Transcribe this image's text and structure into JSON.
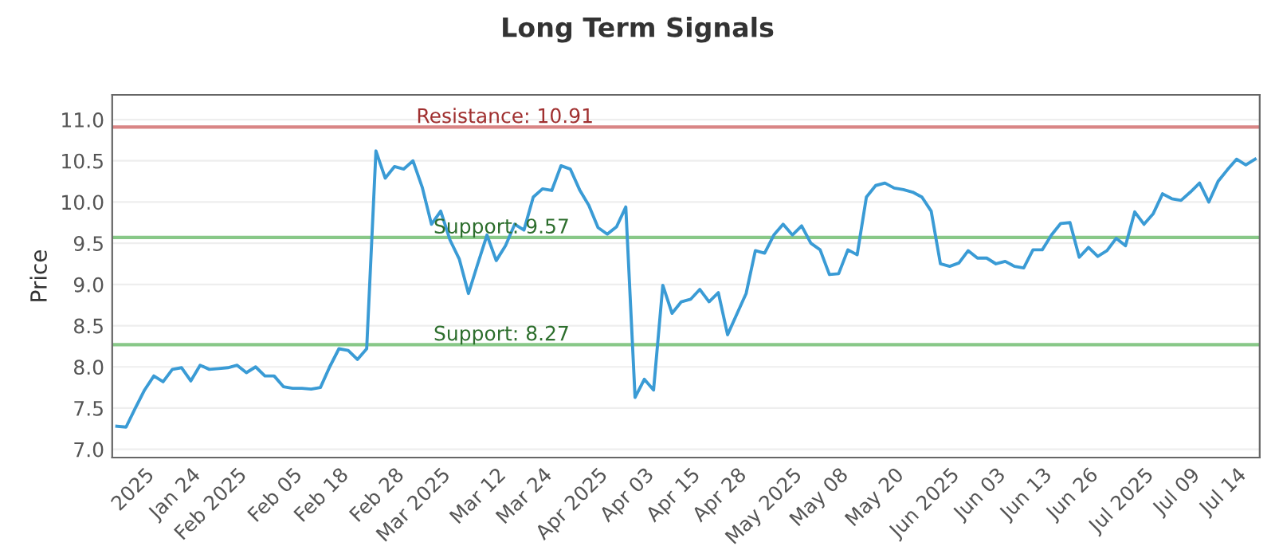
{
  "chart_data": {
    "type": "line",
    "title": "Long Term Signals",
    "ylabel": "Price",
    "categories": [
      null,
      null,
      null,
      "2025",
      null,
      null,
      null,
      null,
      "Jan 24",
      null,
      null,
      null,
      null,
      "Feb 2025",
      null,
      null,
      null,
      null,
      null,
      "Feb 05",
      null,
      null,
      null,
      null,
      "Feb 18",
      null,
      null,
      null,
      null,
      null,
      "Feb 28",
      null,
      null,
      null,
      null,
      "Mar 2025",
      null,
      null,
      null,
      null,
      null,
      "Mar 12",
      null,
      null,
      null,
      null,
      "Mar 24",
      null,
      null,
      null,
      null,
      null,
      "Apr 2025",
      null,
      null,
      null,
      null,
      "Apr 03",
      null,
      null,
      null,
      null,
      "Apr 15",
      null,
      null,
      null,
      null,
      "Apr 28",
      null,
      null,
      null,
      null,
      null,
      "May 2025",
      null,
      null,
      null,
      null,
      "May 08",
      null,
      null,
      null,
      null,
      null,
      "May 20",
      null,
      null,
      null,
      null,
      null,
      "Jun 2025",
      null,
      null,
      null,
      null,
      "Jun 03",
      null,
      null,
      null,
      null,
      "Jun 13",
      null,
      null,
      null,
      null,
      "Jun 26",
      null,
      null,
      null,
      null,
      null,
      "Jul 2025",
      null,
      null,
      null,
      null,
      "Jul 09",
      null,
      null,
      null,
      null,
      "Jul 14",
      null,
      null
    ],
    "series": [
      {
        "color": "#3a9bd5",
        "values": [
          7.28,
          7.27,
          7.5,
          7.72,
          7.89,
          7.82,
          7.97,
          7.99,
          7.83,
          8.02,
          7.97,
          7.98,
          7.99,
          8.02,
          7.93,
          8.0,
          7.89,
          7.89,
          7.76,
          7.74,
          7.74,
          7.73,
          7.75,
          8.0,
          8.22,
          8.2,
          8.09,
          8.22,
          10.62,
          10.29,
          10.43,
          10.4,
          10.5,
          10.18,
          9.73,
          9.89,
          9.54,
          9.31,
          8.89,
          9.25,
          9.6,
          9.29,
          9.47,
          9.73,
          9.66,
          10.06,
          10.16,
          10.14,
          10.44,
          10.4,
          10.15,
          9.96,
          9.69,
          9.61,
          9.7,
          9.94,
          7.63,
          7.85,
          7.72,
          8.99,
          8.65,
          8.79,
          8.82,
          8.94,
          8.79,
          8.9,
          8.39,
          8.64,
          8.89,
          9.41,
          9.38,
          9.6,
          9.73,
          9.6,
          9.71,
          9.5,
          9.42,
          9.12,
          9.13,
          9.42,
          9.36,
          10.06,
          10.2,
          10.23,
          10.17,
          10.15,
          10.12,
          10.06,
          9.89,
          9.25,
          9.22,
          9.26,
          9.41,
          9.32,
          9.32,
          9.25,
          9.28,
          9.22,
          9.2,
          9.42,
          9.42,
          9.6,
          9.74,
          9.75,
          9.33,
          9.45,
          9.34,
          9.41,
          9.56,
          9.47,
          9.88,
          9.73,
          9.86,
          10.1,
          10.04,
          10.02,
          10.12,
          10.23,
          10.0,
          10.25,
          10.39,
          10.52,
          10.45,
          10.52
        ]
      }
    ],
    "ylim": [
      6.9,
      11.3
    ],
    "yticks": [
      {
        "value": 7.0,
        "label": "7.0"
      },
      {
        "value": 7.5,
        "label": "7.5"
      },
      {
        "value": 8.0,
        "label": "8.0"
      },
      {
        "value": 8.5,
        "label": "8.5"
      },
      {
        "value": 9.0,
        "label": "9.0"
      },
      {
        "value": 9.5,
        "label": "9.5"
      },
      {
        "value": 10.0,
        "label": "10.0"
      },
      {
        "value": 10.5,
        "label": "10.5"
      },
      {
        "value": 11.0,
        "label": "11.0"
      }
    ],
    "grid": "y",
    "legend": false,
    "marker": "none",
    "line_style": "solid",
    "ref_lines": [
      {
        "axis": "y",
        "value": 10.91,
        "label": "Resistance: 10.91",
        "color": "#d98585"
      },
      {
        "axis": "y",
        "value": 9.57,
        "label": "Support: 9.57",
        "color": "#88c888"
      },
      {
        "axis": "y",
        "value": 8.27,
        "label": "Support: 8.27",
        "color": "#88c888"
      }
    ]
  }
}
